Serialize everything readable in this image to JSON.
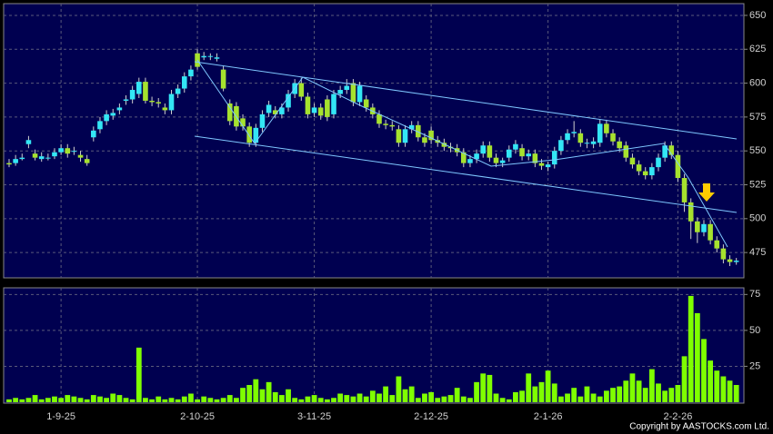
{
  "chart_data": [
    {
      "type": "candlestick",
      "up_color": "#33e6f5",
      "down_color": "#a6e22e",
      "grid": true,
      "ylim": [
        457,
        658
      ],
      "yticks": [
        475,
        500,
        525,
        550,
        575,
        600,
        625,
        650
      ],
      "open": [
        541,
        541,
        544,
        555,
        548,
        544,
        545,
        546,
        549,
        552,
        550,
        547,
        544,
        560,
        566,
        572,
        576,
        580,
        587,
        588,
        592,
        601,
        587,
        586,
        582,
        580,
        592,
        596,
        605,
        622,
        619,
        620,
        618,
        610,
        585,
        583,
        574,
        568,
        556,
        567,
        578,
        580,
        577,
        582,
        592,
        600,
        590,
        578,
        582,
        588,
        577,
        592,
        595,
        600,
        586,
        588,
        582,
        577,
        570,
        569,
        566,
        556,
        566,
        569,
        560,
        565,
        558,
        556,
        553,
        552,
        549,
        541,
        544,
        548,
        554,
        545,
        541,
        545,
        551,
        552,
        546,
        548,
        541,
        538,
        540,
        550,
        558,
        563,
        563,
        556,
        555,
        556,
        570,
        563,
        557,
        554,
        545,
        540,
        535,
        532,
        538,
        545,
        554,
        547,
        530,
        512,
        498,
        490,
        496,
        484,
        478,
        470,
        468
      ],
      "high": [
        544,
        547,
        548,
        561,
        551,
        549,
        548,
        552,
        555,
        555,
        553,
        550,
        547,
        568,
        575,
        580,
        581,
        585,
        591,
        598,
        604,
        604,
        590,
        589,
        585,
        595,
        599,
        608,
        613,
        625,
        623,
        622,
        622,
        613,
        588,
        586,
        577,
        571,
        570,
        580,
        587,
        583,
        585,
        595,
        603,
        604,
        593,
        585,
        585,
        591,
        595,
        598,
        603,
        603,
        601,
        591,
        585,
        580,
        573,
        572,
        569,
        569,
        572,
        572,
        563,
        568,
        561,
        559,
        556,
        555,
        552,
        547,
        551,
        557,
        557,
        548,
        545,
        554,
        558,
        555,
        551,
        551,
        544,
        542,
        553,
        561,
        566,
        572,
        566,
        559,
        560,
        573,
        573,
        566,
        560,
        557,
        548,
        543,
        538,
        541,
        548,
        557,
        557,
        550,
        533,
        515,
        501,
        499,
        499,
        487,
        481,
        473,
        471
      ],
      "low": [
        538,
        539,
        543,
        552,
        543,
        542,
        543,
        544,
        547,
        545,
        547,
        542,
        539,
        557,
        563,
        569,
        573,
        577,
        584,
        585,
        589,
        585,
        583,
        582,
        577,
        577,
        589,
        593,
        602,
        610,
        617,
        617,
        616,
        594,
        569,
        565,
        565,
        553,
        553,
        564,
        575,
        574,
        574,
        579,
        589,
        587,
        574,
        575,
        573,
        572,
        574,
        589,
        592,
        583,
        583,
        579,
        574,
        567,
        566,
        565,
        553,
        553,
        563,
        557,
        553,
        555,
        553,
        550,
        549,
        546,
        538,
        538,
        541,
        545,
        542,
        538,
        538,
        542,
        548,
        543,
        543,
        538,
        536,
        535,
        537,
        547,
        555,
        560,
        553,
        552,
        552,
        553,
        560,
        554,
        549,
        542,
        537,
        532,
        529,
        529,
        535,
        542,
        544,
        527,
        505,
        485,
        482,
        487,
        481,
        475,
        467,
        465,
        466
      ],
      "close": [
        540,
        544,
        545,
        558,
        545,
        546,
        545,
        549,
        552,
        548,
        550,
        545,
        541,
        565,
        572,
        577,
        578,
        582,
        588,
        595,
        601,
        587,
        586,
        585,
        580,
        592,
        596,
        605,
        610,
        612,
        620,
        620,
        619,
        596,
        572,
        568,
        568,
        556,
        567,
        577,
        584,
        577,
        582,
        592,
        600,
        590,
        577,
        582,
        576,
        575,
        592,
        595,
        598,
        586,
        598,
        582,
        577,
        570,
        569,
        568,
        556,
        566,
        569,
        560,
        556,
        558,
        556,
        553,
        552,
        549,
        541,
        544,
        548,
        554,
        545,
        541,
        543,
        551,
        555,
        546,
        548,
        541,
        539,
        540,
        550,
        558,
        563,
        564,
        556,
        556,
        557,
        570,
        563,
        557,
        552,
        545,
        540,
        535,
        532,
        538,
        545,
        554,
        547,
        530,
        512,
        498,
        490,
        496,
        484,
        478,
        470,
        468,
        469
      ]
    },
    {
      "type": "bar",
      "color": "#7fff00",
      "grid": true,
      "ylim": [
        0,
        79
      ],
      "yticks": [
        25,
        50,
        75
      ],
      "categories": [
        null,
        null,
        null,
        null,
        null,
        null,
        null,
        null,
        "1-9-25",
        null,
        null,
        null,
        null,
        null,
        null,
        null,
        null,
        null,
        null,
        null,
        null,
        null,
        null,
        null,
        null,
        null,
        null,
        null,
        null,
        "2-10-25",
        null,
        null,
        null,
        null,
        null,
        null,
        null,
        null,
        null,
        null,
        null,
        null,
        null,
        null,
        null,
        null,
        null,
        "3-11-25",
        null,
        null,
        null,
        null,
        null,
        null,
        null,
        null,
        null,
        null,
        null,
        null,
        null,
        null,
        null,
        null,
        null,
        "2-12-25",
        null,
        null,
        null,
        null,
        null,
        null,
        null,
        null,
        null,
        null,
        null,
        null,
        null,
        null,
        null,
        null,
        null,
        "2-1-26",
        null,
        null,
        null,
        null,
        null,
        null,
        null,
        null,
        null,
        null,
        null,
        null,
        null,
        null,
        null,
        null,
        null,
        null,
        null,
        "2-2-26",
        null,
        null,
        null,
        null,
        null,
        null,
        null,
        null,
        null
      ],
      "values": [
        2,
        3,
        2,
        3,
        5,
        2,
        3,
        4,
        3,
        5,
        4,
        3,
        2,
        5,
        4,
        3,
        6,
        5,
        3,
        2,
        38,
        3,
        2,
        4,
        2,
        3,
        2,
        4,
        6,
        2,
        4,
        3,
        2,
        3,
        5,
        3,
        10,
        12,
        16,
        9,
        14,
        7,
        5,
        9,
        3,
        2,
        4,
        5,
        3,
        2,
        3,
        6,
        5,
        4,
        6,
        4,
        8,
        6,
        11,
        5,
        18,
        9,
        11,
        3,
        6,
        7,
        3,
        4,
        5,
        10,
        4,
        3,
        14,
        20,
        19,
        6,
        3,
        2,
        7,
        8,
        20,
        11,
        14,
        22,
        13,
        4,
        6,
        10,
        4,
        11,
        6,
        4,
        8,
        10,
        11,
        15,
        20,
        15,
        10,
        23,
        13,
        8,
        10,
        12,
        32,
        74,
        62,
        44,
        29,
        22,
        18,
        15,
        12
      ]
    }
  ],
  "copyright": "Copyright by AASTOCKS.com Ltd."
}
